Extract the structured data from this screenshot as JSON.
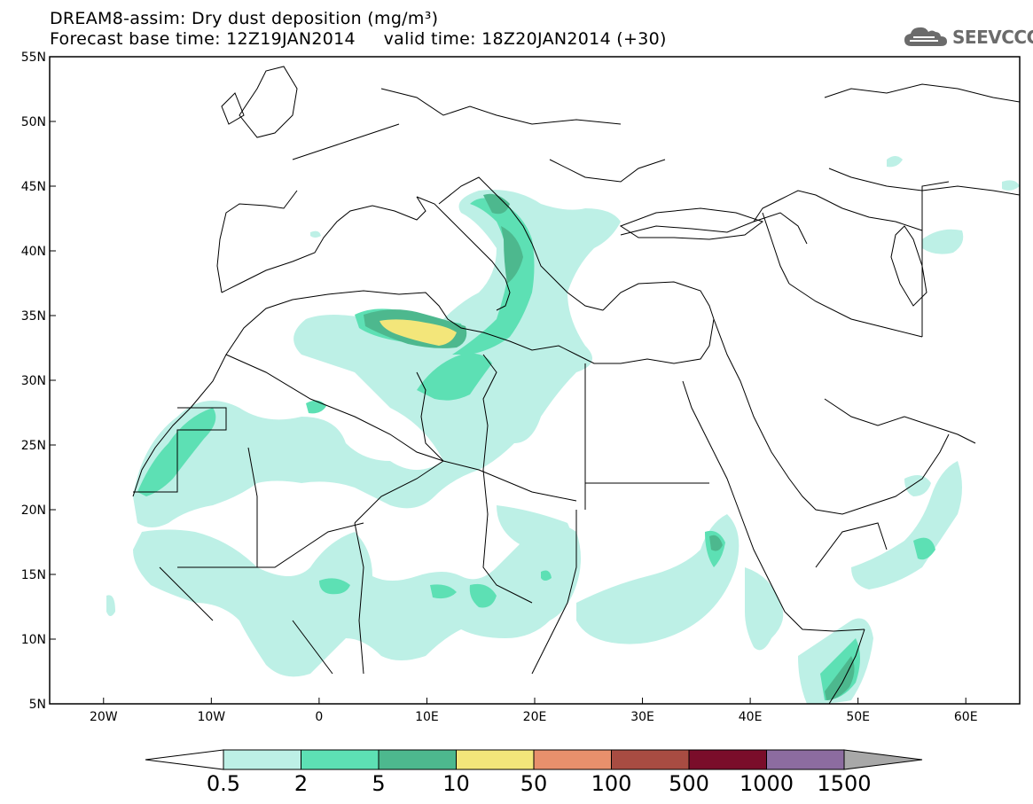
{
  "title": {
    "line1": "DREAM8-assim: Dry dust deposition (mg/m³)",
    "line2": "Forecast base time: 12Z19JAN2014     valid time: 18Z20JAN2014 (+30)"
  },
  "logo": {
    "text": "SEEVCCC",
    "icon": "cloud-icon"
  },
  "map": {
    "lon_range": [
      -25,
      65
    ],
    "lat_range": [
      5,
      55
    ],
    "lon_ticks": [
      {
        "value": -20,
        "label": "20W"
      },
      {
        "value": -10,
        "label": "10W"
      },
      {
        "value": 0,
        "label": "0"
      },
      {
        "value": 10,
        "label": "10E"
      },
      {
        "value": 20,
        "label": "20E"
      },
      {
        "value": 30,
        "label": "30E"
      },
      {
        "value": 40,
        "label": "40E"
      },
      {
        "value": 50,
        "label": "50E"
      },
      {
        "value": 60,
        "label": "60E"
      }
    ],
    "lat_ticks": [
      {
        "value": 55,
        "label": "55N"
      },
      {
        "value": 50,
        "label": "50N"
      },
      {
        "value": 45,
        "label": "45N"
      },
      {
        "value": 40,
        "label": "40N"
      },
      {
        "value": 35,
        "label": "35N"
      },
      {
        "value": 30,
        "label": "30N"
      },
      {
        "value": 25,
        "label": "25N"
      },
      {
        "value": 20,
        "label": "20N"
      },
      {
        "value": 15,
        "label": "15N"
      },
      {
        "value": 10,
        "label": "10N"
      },
      {
        "value": 5,
        "label": "5N"
      }
    ]
  },
  "colorbar": {
    "bins": [
      {
        "color": "#bdf0e6"
      },
      {
        "color": "#5de0b4"
      },
      {
        "color": "#4db88e"
      },
      {
        "color": "#f3e67a"
      },
      {
        "color": "#e8906c"
      },
      {
        "color": "#a84c42"
      },
      {
        "color": "#7a0d2a"
      },
      {
        "color": "#8c6ca0"
      }
    ],
    "under_color": "#ffffff",
    "over_color": "#a8a8a8",
    "labels": [
      "0.5",
      "2",
      "5",
      "10",
      "50",
      "100",
      "500",
      "1000",
      "1500"
    ]
  },
  "colors": {
    "lvl1": "#bdf0e6",
    "lvl2": "#5de0b4",
    "lvl3": "#4db88e",
    "lvl4": "#f3e67a",
    "coast": "#000000"
  }
}
